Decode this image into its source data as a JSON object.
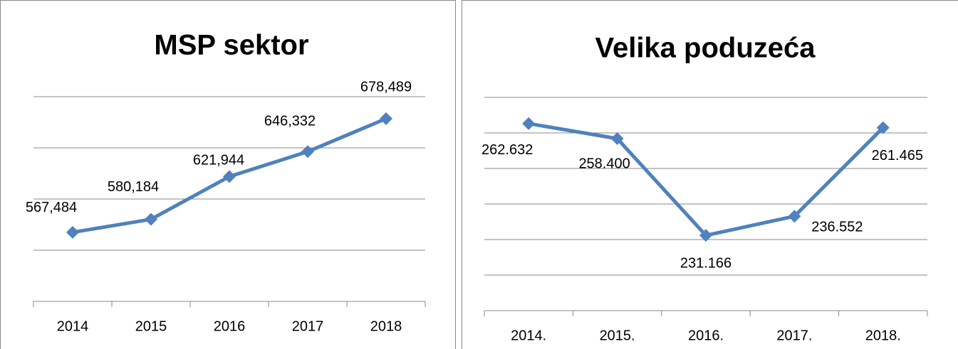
{
  "chart_data": [
    {
      "type": "line",
      "title": "MSP sektor",
      "categories": [
        "2014",
        "2015",
        "2016",
        "2017",
        "2018"
      ],
      "series": [
        {
          "color": "#4f81bd",
          "values": [
            567484,
            580184,
            621944,
            646332,
            678489
          ],
          "value_labels": [
            "567,484",
            "580,184",
            "621,944",
            "646,332",
            "678,489"
          ]
        }
      ],
      "ylim": [
        500000,
        700000
      ],
      "yticks": [
        500000,
        550000,
        600000,
        650000,
        700000
      ],
      "grid": true
    },
    {
      "type": "line",
      "title": "Velika poduzeća",
      "categories": [
        "2014.",
        "2015.",
        "2016.",
        "2017.",
        "2018."
      ],
      "series": [
        {
          "color": "#4f81bd",
          "values": [
            262632,
            258400,
            231166,
            236552,
            261465
          ],
          "value_labels": [
            "262.632",
            "258.400",
            "231.166",
            "236.552",
            "261.465"
          ]
        }
      ],
      "ylim": [
        210000,
        270000
      ],
      "yticks": [
        210000,
        220000,
        230000,
        240000,
        250000,
        260000,
        270000
      ],
      "grid": true
    }
  ]
}
